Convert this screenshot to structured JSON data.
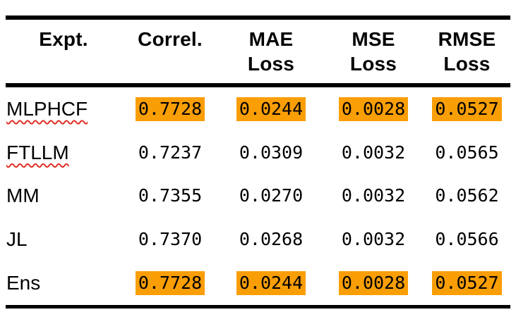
{
  "theme": {
    "highlight": "#FA9E06",
    "rule": "#000000",
    "text": "#000000",
    "squiggle": "#E03127",
    "background": "#FFFFFF"
  },
  "table": {
    "headers": [
      {
        "line1": "Expt.",
        "line2": ""
      },
      {
        "line1": "Correl.",
        "line2": ""
      },
      {
        "line1": "MAE",
        "line2": "Loss"
      },
      {
        "line1": "MSE",
        "line2": "Loss"
      },
      {
        "line1": "RMSE",
        "line2": "Loss"
      }
    ],
    "rows": [
      {
        "expt": "MLPHCF",
        "correl": "0.7728",
        "mae_loss": "0.0244",
        "mse_loss": "0.0028",
        "rmse_loss": "0.0527",
        "highlighted": true,
        "spellcheck_underline": true
      },
      {
        "expt": "FTLLM",
        "correl": "0.7237",
        "mae_loss": "0.0309",
        "mse_loss": "0.0032",
        "rmse_loss": "0.0565",
        "highlighted": false,
        "spellcheck_underline": true
      },
      {
        "expt": "MM",
        "correl": "0.7355",
        "mae_loss": "0.0270",
        "mse_loss": "0.0032",
        "rmse_loss": "0.0562",
        "highlighted": false,
        "spellcheck_underline": false
      },
      {
        "expt": "JL",
        "correl": "0.7370",
        "mae_loss": "0.0268",
        "mse_loss": "0.0032",
        "rmse_loss": "0.0566",
        "highlighted": false,
        "spellcheck_underline": false
      },
      {
        "expt": "Ens",
        "correl": "0.7728",
        "mae_loss": "0.0244",
        "mse_loss": "0.0028",
        "rmse_loss": "0.0527",
        "highlighted": true,
        "spellcheck_underline": false
      }
    ]
  }
}
